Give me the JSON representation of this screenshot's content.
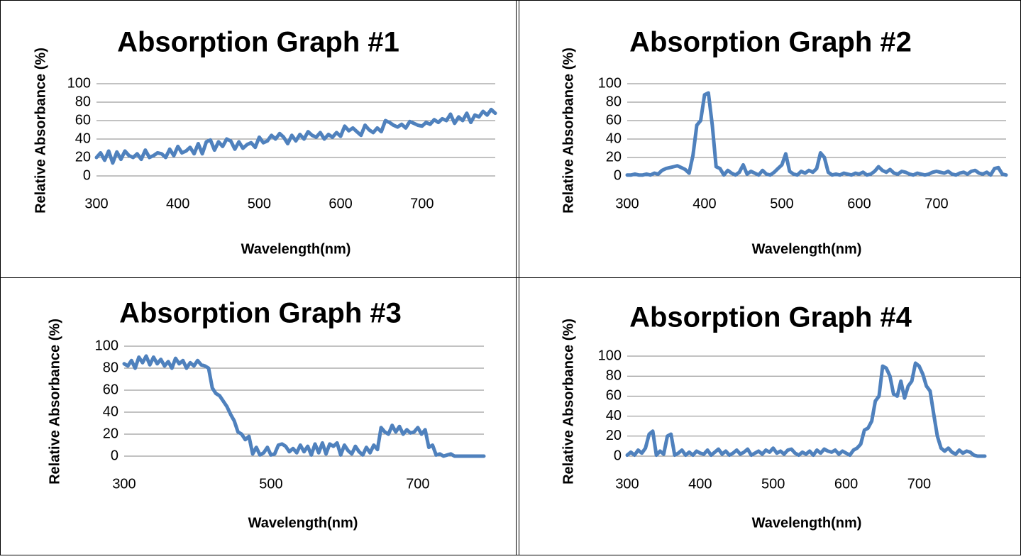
{
  "chart_data": [
    {
      "type": "line",
      "title": "Absorption Graph #1",
      "xlabel": "Wavelength(nm)",
      "ylabel": "Relative Absorbance (%)",
      "xlim": [
        300,
        790
      ],
      "ylim": [
        0,
        100
      ],
      "xticks": [
        300,
        400,
        500,
        600,
        700
      ],
      "yticks": [
        0,
        20,
        40,
        60,
        80,
        100
      ],
      "grid": true,
      "line_color": "#4F81BD",
      "series": [
        {
          "x": [
            300,
            305,
            310,
            315,
            320,
            325,
            330,
            335,
            340,
            345,
            350,
            355,
            360,
            365,
            370,
            375,
            380,
            385,
            390,
            395,
            400,
            405,
            410,
            415,
            420,
            425,
            430,
            435,
            440,
            445,
            450,
            455,
            460,
            465,
            470,
            475,
            480,
            485,
            490,
            495,
            500,
            505,
            510,
            515,
            520,
            525,
            530,
            535,
            540,
            545,
            550,
            555,
            560,
            565,
            570,
            575,
            580,
            585,
            590,
            595,
            600,
            605,
            610,
            615,
            620,
            625,
            630,
            635,
            640,
            645,
            650,
            655,
            660,
            665,
            670,
            675,
            680,
            685,
            690,
            695,
            700,
            705,
            710,
            715,
            720,
            725,
            730,
            735,
            740,
            745,
            750,
            755,
            760,
            765,
            770,
            775,
            780,
            785,
            790
          ],
          "y": [
            20,
            25,
            17,
            27,
            14,
            26,
            18,
            27,
            22,
            20,
            24,
            18,
            28,
            20,
            22,
            25,
            24,
            20,
            29,
            22,
            32,
            25,
            27,
            31,
            24,
            35,
            24,
            37,
            39,
            28,
            37,
            32,
            40,
            38,
            29,
            37,
            30,
            34,
            36,
            31,
            42,
            36,
            38,
            44,
            40,
            46,
            42,
            35,
            44,
            38,
            45,
            40,
            48,
            44,
            42,
            47,
            40,
            45,
            42,
            47,
            43,
            54,
            49,
            52,
            48,
            44,
            55,
            50,
            47,
            52,
            48,
            60,
            58,
            55,
            53,
            56,
            52,
            59,
            57,
            55,
            54,
            58,
            56,
            61,
            58,
            62,
            60,
            67,
            57,
            64,
            60,
            68,
            58,
            66,
            64,
            70,
            66,
            72,
            68
          ]
        }
      ]
    },
    {
      "type": "line",
      "title": "Absorption Graph #2",
      "xlabel": "Wavelength(nm)",
      "ylabel": "Relative Absorbance (%)",
      "xlim": [
        300,
        790
      ],
      "ylim": [
        0,
        100
      ],
      "xticks": [
        300,
        400,
        500,
        600,
        700
      ],
      "yticks": [
        0,
        20,
        40,
        60,
        80,
        100
      ],
      "grid": true,
      "line_color": "#4F81BD",
      "series": [
        {
          "x": [
            300,
            305,
            310,
            315,
            320,
            325,
            330,
            335,
            340,
            345,
            350,
            355,
            360,
            365,
            370,
            375,
            380,
            385,
            390,
            395,
            400,
            405,
            410,
            415,
            420,
            425,
            430,
            435,
            440,
            445,
            450,
            455,
            460,
            465,
            470,
            475,
            480,
            485,
            490,
            495,
            500,
            505,
            510,
            515,
            520,
            525,
            530,
            535,
            540,
            545,
            550,
            555,
            560,
            565,
            570,
            575,
            580,
            585,
            590,
            595,
            600,
            605,
            610,
            615,
            620,
            625,
            630,
            635,
            640,
            645,
            650,
            655,
            660,
            665,
            670,
            675,
            680,
            685,
            690,
            695,
            700,
            705,
            710,
            715,
            720,
            725,
            730,
            735,
            740,
            745,
            750,
            755,
            760,
            765,
            770,
            775,
            780,
            785,
            790
          ],
          "y": [
            1,
            1,
            2,
            1,
            1,
            2,
            1,
            3,
            2,
            6,
            8,
            9,
            10,
            11,
            9,
            7,
            3,
            22,
            55,
            60,
            88,
            90,
            55,
            10,
            8,
            1,
            6,
            3,
            1,
            4,
            12,
            2,
            5,
            3,
            1,
            6,
            2,
            1,
            4,
            8,
            12,
            24,
            5,
            2,
            1,
            5,
            3,
            6,
            4,
            8,
            25,
            20,
            4,
            1,
            2,
            1,
            3,
            2,
            1,
            3,
            2,
            4,
            1,
            2,
            5,
            10,
            6,
            4,
            7,
            3,
            2,
            5,
            4,
            2,
            1,
            3,
            2,
            1,
            2,
            4,
            5,
            4,
            3,
            5,
            2,
            1,
            3,
            4,
            2,
            5,
            6,
            3,
            2,
            4,
            1,
            8,
            9,
            2,
            1
          ]
        }
      ]
    },
    {
      "type": "line",
      "title": "Absorption Graph #3",
      "xlabel": "Wavelength(nm)",
      "ylabel": "Relative Absorbance (%)",
      "xlim": [
        300,
        790
      ],
      "ylim": [
        0,
        100
      ],
      "xticks": [
        300,
        500,
        700
      ],
      "yticks": [
        0,
        20,
        40,
        60,
        80,
        100
      ],
      "grid": true,
      "line_color": "#4F81BD",
      "series": [
        {
          "x": [
            300,
            305,
            310,
            315,
            320,
            325,
            330,
            335,
            340,
            345,
            350,
            355,
            360,
            365,
            370,
            375,
            380,
            385,
            390,
            395,
            400,
            405,
            410,
            415,
            420,
            425,
            430,
            435,
            440,
            445,
            450,
            455,
            460,
            465,
            470,
            475,
            480,
            485,
            490,
            495,
            500,
            505,
            510,
            515,
            520,
            525,
            530,
            535,
            540,
            545,
            550,
            555,
            560,
            565,
            570,
            575,
            580,
            585,
            590,
            595,
            600,
            605,
            610,
            615,
            620,
            625,
            630,
            635,
            640,
            645,
            650,
            655,
            660,
            665,
            670,
            675,
            680,
            685,
            690,
            695,
            700,
            705,
            710,
            715,
            720,
            725,
            730,
            735,
            740,
            745,
            750,
            755,
            760,
            765,
            770,
            775,
            780,
            785,
            790
          ],
          "y": [
            84,
            82,
            87,
            80,
            90,
            85,
            91,
            83,
            90,
            84,
            88,
            82,
            86,
            80,
            89,
            84,
            87,
            80,
            85,
            82,
            87,
            83,
            82,
            80,
            62,
            57,
            55,
            50,
            45,
            38,
            32,
            22,
            20,
            15,
            18,
            2,
            8,
            1,
            3,
            8,
            1,
            2,
            10,
            11,
            9,
            4,
            7,
            3,
            10,
            4,
            9,
            1,
            11,
            3,
            12,
            2,
            11,
            9,
            12,
            1,
            10,
            5,
            2,
            9,
            4,
            1,
            8,
            3,
            10,
            6,
            26,
            22,
            20,
            28,
            22,
            27,
            20,
            24,
            21,
            22,
            26,
            20,
            24,
            8,
            10,
            1,
            2,
            0,
            1,
            2,
            0,
            0,
            0,
            0,
            0,
            0,
            0,
            0,
            0
          ]
        }
      ]
    },
    {
      "type": "line",
      "title": "Absorption Graph #4",
      "xlabel": "Wavelength(nm)",
      "ylabel": "Relative Absorbance (%)",
      "xlim": [
        300,
        790
      ],
      "ylim": [
        0,
        100
      ],
      "xticks": [
        300,
        400,
        500,
        600,
        700
      ],
      "yticks": [
        0,
        20,
        40,
        60,
        80,
        100
      ],
      "grid": true,
      "line_color": "#4F81BD",
      "series": [
        {
          "x": [
            300,
            305,
            310,
            315,
            320,
            325,
            330,
            335,
            340,
            345,
            350,
            355,
            360,
            365,
            370,
            375,
            380,
            385,
            390,
            395,
            400,
            405,
            410,
            415,
            420,
            425,
            430,
            435,
            440,
            445,
            450,
            455,
            460,
            465,
            470,
            475,
            480,
            485,
            490,
            495,
            500,
            505,
            510,
            515,
            520,
            525,
            530,
            535,
            540,
            545,
            550,
            555,
            560,
            565,
            570,
            575,
            580,
            585,
            590,
            595,
            600,
            605,
            610,
            615,
            620,
            625,
            630,
            635,
            640,
            645,
            650,
            655,
            660,
            665,
            670,
            675,
            680,
            685,
            690,
            695,
            700,
            705,
            710,
            715,
            720,
            725,
            730,
            735,
            740,
            745,
            750,
            755,
            760,
            765,
            770,
            775,
            780,
            785,
            790
          ],
          "y": [
            1,
            4,
            1,
            6,
            3,
            8,
            22,
            25,
            1,
            5,
            2,
            20,
            22,
            1,
            3,
            6,
            1,
            4,
            1,
            5,
            3,
            2,
            6,
            1,
            4,
            7,
            2,
            5,
            1,
            3,
            6,
            2,
            4,
            7,
            1,
            3,
            5,
            2,
            6,
            4,
            8,
            3,
            5,
            2,
            6,
            7,
            3,
            1,
            4,
            2,
            5,
            1,
            6,
            3,
            7,
            5,
            4,
            6,
            2,
            5,
            3,
            1,
            6,
            8,
            12,
            26,
            28,
            35,
            55,
            60,
            90,
            88,
            80,
            62,
            60,
            75,
            58,
            70,
            75,
            93,
            90,
            82,
            70,
            65,
            42,
            20,
            8,
            5,
            8,
            4,
            2,
            6,
            3,
            5,
            4,
            1,
            0,
            0,
            0
          ]
        }
      ]
    }
  ]
}
